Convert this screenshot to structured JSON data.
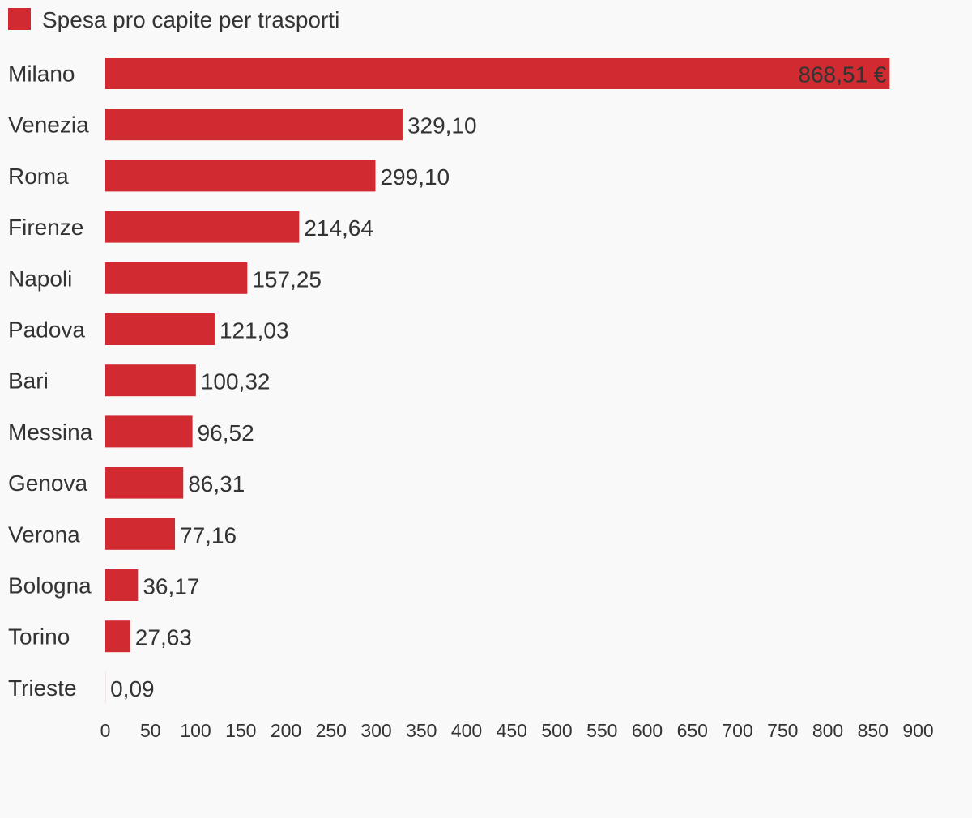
{
  "chart_data": {
    "type": "bar",
    "orientation": "horizontal",
    "categories": [
      "Milano",
      "Venezia",
      "Roma",
      "Firenze",
      "Napoli",
      "Padova",
      "Bari",
      "Messina",
      "Genova",
      "Verona",
      "Bologna",
      "Torino",
      "Trieste"
    ],
    "series": [
      {
        "name": "Spesa pro capite per trasporti",
        "values": [
          868.51,
          329.1,
          299.1,
          214.64,
          157.25,
          121.03,
          100.32,
          96.52,
          86.31,
          77.16,
          36.17,
          27.63,
          0.09
        ]
      }
    ],
    "value_labels": [
      "868,51 €",
      "329,10",
      "299,10",
      "214,64",
      "157,25",
      "121,03",
      "100,32",
      "96,52",
      "86,31",
      "77,16",
      "36,17",
      "27,63",
      "0,09"
    ],
    "x_ticks": [
      0,
      50,
      100,
      150,
      200,
      250,
      300,
      350,
      400,
      450,
      500,
      550,
      600,
      650,
      700,
      750,
      800,
      850,
      900
    ],
    "xlim": [
      0,
      900
    ],
    "legend_position": "top-left",
    "grid": false,
    "bar_color": "#d12b31"
  }
}
